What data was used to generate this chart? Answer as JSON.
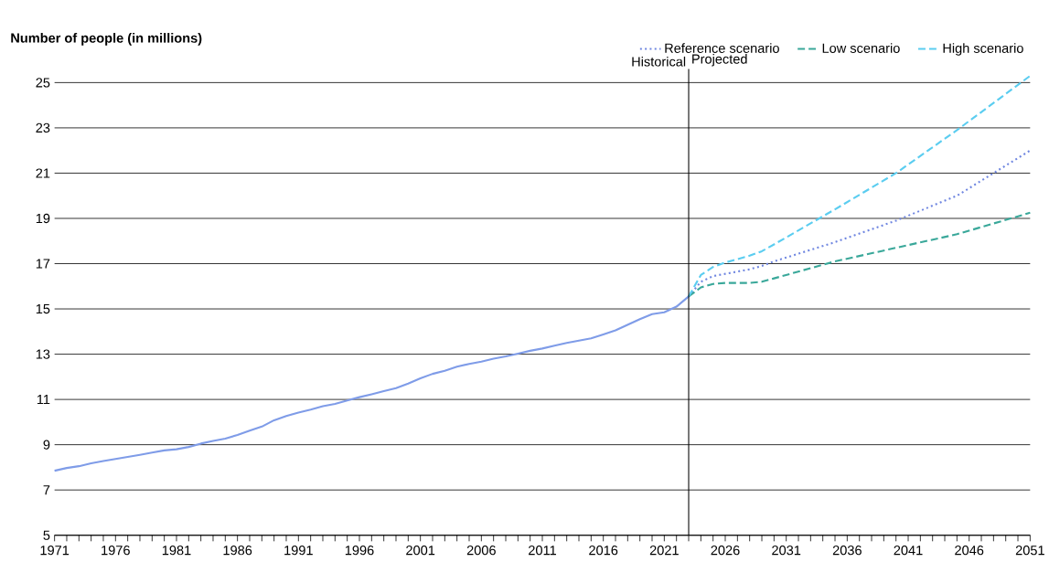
{
  "chart_data": {
    "type": "line",
    "ylabel": "Number of people (in millions)",
    "xlim": [
      1971,
      2051
    ],
    "xticks": [
      1971,
      {
        "value": 1972,
        "label": null
      },
      {
        "value": 1973,
        "label": null
      },
      {
        "value": 1974,
        "label": null
      },
      {
        "value": 1975,
        "label": null
      },
      1976,
      {
        "value": 1977,
        "label": null
      },
      {
        "value": 1978,
        "label": null
      },
      {
        "value": 1979,
        "label": null
      },
      {
        "value": 1980,
        "label": null
      },
      1981,
      {
        "value": 1982,
        "label": null
      },
      {
        "value": 1983,
        "label": null
      },
      {
        "value": 1984,
        "label": null
      },
      {
        "value": 1985,
        "label": null
      },
      1986,
      {
        "value": 1987,
        "label": null
      },
      {
        "value": 1988,
        "label": null
      },
      {
        "value": 1989,
        "label": null
      },
      {
        "value": 1990,
        "label": null
      },
      1991,
      {
        "value": 1992,
        "label": null
      },
      {
        "value": 1993,
        "label": null
      },
      {
        "value": 1994,
        "label": null
      },
      {
        "value": 1995,
        "label": null
      },
      1996,
      {
        "value": 1997,
        "label": null
      },
      {
        "value": 1998,
        "label": null
      },
      {
        "value": 1999,
        "label": null
      },
      {
        "value": 2000,
        "label": null
      },
      2001,
      {
        "value": 2002,
        "label": null
      },
      {
        "value": 2003,
        "label": null
      },
      {
        "value": 2004,
        "label": null
      },
      {
        "value": 2005,
        "label": null
      },
      2006,
      {
        "value": 2007,
        "label": null
      },
      {
        "value": 2008,
        "label": null
      },
      {
        "value": 2009,
        "label": null
      },
      {
        "value": 2010,
        "label": null
      },
      2011,
      {
        "value": 2012,
        "label": null
      },
      {
        "value": 2013,
        "label": null
      },
      {
        "value": 2014,
        "label": null
      },
      {
        "value": 2015,
        "label": null
      },
      2016,
      {
        "value": 2017,
        "label": null
      },
      {
        "value": 2018,
        "label": null
      },
      {
        "value": 2019,
        "label": null
      },
      {
        "value": 2020,
        "label": null
      },
      2021,
      {
        "value": 2022,
        "label": null
      },
      {
        "value": 2023,
        "label": null
      },
      {
        "value": 2024,
        "label": null
      },
      {
        "value": 2025,
        "label": null
      },
      2026,
      {
        "value": 2027,
        "label": null
      },
      {
        "value": 2028,
        "label": null
      },
      {
        "value": 2029,
        "label": null
      },
      {
        "value": 2030,
        "label": null
      },
      2031,
      {
        "value": 2032,
        "label": null
      },
      {
        "value": 2033,
        "label": null
      },
      {
        "value": 2034,
        "label": null
      },
      {
        "value": 2035,
        "label": null
      },
      2036,
      {
        "value": 2037,
        "label": null
      },
      {
        "value": 2038,
        "label": null
      },
      {
        "value": 2039,
        "label": null
      },
      {
        "value": 2040,
        "label": null
      },
      2041,
      {
        "value": 2042,
        "label": null
      },
      {
        "value": 2043,
        "label": null
      },
      {
        "value": 2044,
        "label": null
      },
      {
        "value": 2045,
        "label": null
      },
      2046,
      {
        "value": 2047,
        "label": null
      },
      {
        "value": 2048,
        "label": null
      },
      {
        "value": 2049,
        "label": null
      },
      {
        "value": 2050,
        "label": null
      },
      2051
    ],
    "ylim": [
      5,
      25.6
    ],
    "yticks": [
      5,
      7,
      9,
      11,
      13,
      15,
      17,
      19,
      21,
      23,
      25
    ],
    "grid": "y",
    "legend": "top right",
    "ref_lines": [
      {
        "axis": "x",
        "value": 2023,
        "color": "#000000"
      }
    ],
    "annotations": [
      "Historical",
      "Projected"
    ],
    "series": [
      {
        "color": "#7f9ce8",
        "line_style": "solid",
        "x": [
          1971,
          1972,
          1973,
          1974,
          1975,
          1976,
          1977,
          1978,
          1979,
          1980,
          1981,
          1982,
          1983,
          1984,
          1985,
          1986,
          1987,
          1988,
          1989,
          1990,
          1991,
          1992,
          1993,
          1994,
          1995,
          1996,
          1997,
          1998,
          1999,
          2000,
          2001,
          2002,
          2003,
          2004,
          2005,
          2006,
          2007,
          2008,
          2009,
          2010,
          2011,
          2012,
          2013,
          2014,
          2015,
          2016,
          2017,
          2018,
          2019,
          2020,
          2021,
          2022,
          2023
        ],
        "values": [
          7.85,
          7.97,
          8.05,
          8.18,
          8.28,
          8.37,
          8.46,
          8.55,
          8.65,
          8.75,
          8.8,
          8.9,
          9.05,
          9.17,
          9.27,
          9.43,
          9.62,
          9.8,
          10.08,
          10.27,
          10.42,
          10.55,
          10.7,
          10.8,
          10.95,
          11.1,
          11.23,
          11.37,
          11.5,
          11.7,
          11.93,
          12.13,
          12.27,
          12.45,
          12.57,
          12.67,
          12.8,
          12.9,
          13.02,
          13.15,
          13.25,
          13.38,
          13.5,
          13.6,
          13.7,
          13.87,
          14.05,
          14.3,
          14.55,
          14.77,
          14.85,
          15.1,
          15.55
        ]
      },
      {
        "name": "Reference scenario",
        "color": "#6f86e0",
        "line_style": "dotted",
        "x": [
          2023,
          2024,
          2025,
          2026,
          2027,
          2028,
          2029,
          2030,
          2035,
          2040,
          2045,
          2051
        ],
        "values": [
          15.55,
          16.2,
          16.45,
          16.55,
          16.65,
          16.75,
          16.9,
          17.1,
          17.95,
          18.9,
          20.0,
          22.0
        ]
      },
      {
        "name": "Low scenario",
        "color": "#3aa89a",
        "line_style": "dashed",
        "x": [
          2023,
          2024,
          2025,
          2026,
          2027,
          2028,
          2029,
          2030,
          2035,
          2040,
          2045,
          2051
        ],
        "values": [
          15.55,
          15.95,
          16.1,
          16.15,
          16.15,
          16.15,
          16.2,
          16.35,
          17.1,
          17.7,
          18.3,
          19.25
        ]
      },
      {
        "name": "High scenario",
        "color": "#5bcdf0",
        "line_style": "dashed",
        "x": [
          2023,
          2024,
          2025,
          2026,
          2027,
          2028,
          2029,
          2030,
          2035,
          2040,
          2045,
          2051
        ],
        "values": [
          15.55,
          16.5,
          16.85,
          17.05,
          17.2,
          17.35,
          17.55,
          17.85,
          19.4,
          21.0,
          22.9,
          25.3
        ]
      }
    ]
  }
}
